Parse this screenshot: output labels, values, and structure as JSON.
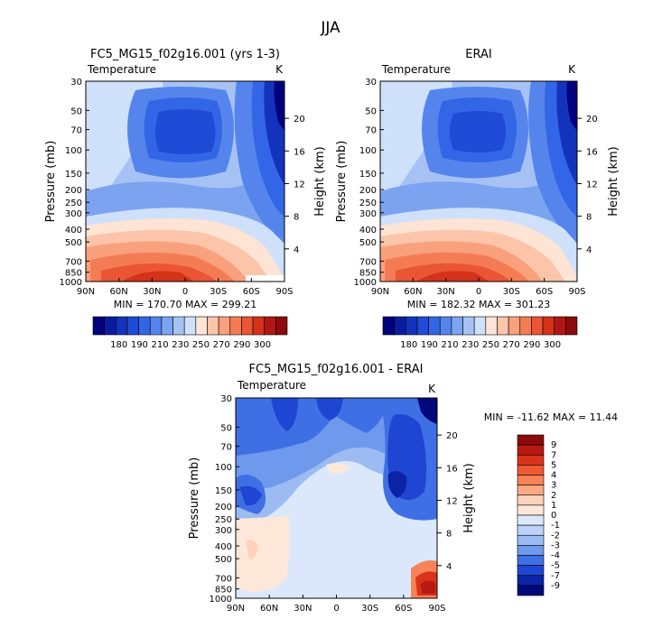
{
  "main_title": "JJA",
  "panels": [
    {
      "id": "model",
      "title": "FC5_MG15_f02g16.001 (yrs 1-3)",
      "left_label": "Temperature",
      "right_label": "K",
      "ylabel": "Pressure (mb)",
      "ylabel2": "Height (km)",
      "minmax": "MIN = 170.70   MAX = 299.21"
    },
    {
      "id": "obs",
      "title": "ERAI",
      "left_label": "Temperature",
      "right_label": "K",
      "ylabel": "Pressure (mb)",
      "ylabel2": "Height (km)",
      "minmax": "MIN = 182.32   MAX = 301.23"
    },
    {
      "id": "diff",
      "title": "FC5_MG15_f02g16.001 - ERAI",
      "left_label": "Temperature",
      "right_label": "K",
      "ylabel": "Pressure (mb)",
      "ylabel2": "Height (km)",
      "minmax": "MIN = -11.62   MAX =  11.44"
    }
  ],
  "axes": {
    "x_ticks": [
      "90N",
      "60N",
      "30N",
      "0",
      "30S",
      "60S",
      "90S"
    ],
    "pressure_ticks": [
      "30",
      "50",
      "70",
      "100",
      "150",
      "200",
      "250",
      "300",
      "400",
      "500",
      "700",
      "850",
      "1000"
    ],
    "height_ticks": [
      "20",
      "16",
      "12",
      "8",
      "4"
    ]
  },
  "colorbars": {
    "temperature": {
      "labels": [
        "180",
        "190",
        "210",
        "230",
        "250",
        "270",
        "290",
        "300"
      ],
      "colors": [
        "#00007f",
        "#0a1c9e",
        "#1433bd",
        "#1f4bd6",
        "#3366e6",
        "#5585ec",
        "#7ba3f0",
        "#a6c2f5",
        "#cfe0fa",
        "#fde4d4",
        "#fcc4a8",
        "#f9a07c",
        "#f47c55",
        "#ea5633",
        "#d4321a",
        "#b01612",
        "#8c0a0a"
      ]
    },
    "difference": {
      "labels": [
        "9",
        "7",
        "5",
        "4",
        "3",
        "2",
        "1",
        "0",
        "-1",
        "-2",
        "-3",
        "-4",
        "-5",
        "-7",
        "-9"
      ],
      "colors": [
        "#8c0a0a",
        "#b81a12",
        "#d9331c",
        "#ef5a34",
        "#f98358",
        "#fba985",
        "#fdd2bc",
        "#fde7d9",
        "#dbe8fb",
        "#bcd2f7",
        "#9bbbf2",
        "#6f99ec",
        "#3f6fe4",
        "#1f46d2",
        "#0c23a8",
        "#00087a"
      ]
    }
  },
  "chart_data": [
    {
      "type": "heatmap",
      "title": "FC5_MG15_f02g16.001 (yrs 1-3)",
      "variable": "Temperature",
      "units": "K",
      "x": [
        "90N",
        "60N",
        "30N",
        "0",
        "30S",
        "60S",
        "90S"
      ],
      "y_pressure_mb": [
        30,
        50,
        70,
        100,
        150,
        200,
        250,
        300,
        400,
        500,
        700,
        850,
        1000
      ],
      "min": 170.7,
      "max": 299.21,
      "levels": [
        180,
        190,
        210,
        230,
        250,
        270,
        290,
        300
      ]
    },
    {
      "type": "heatmap",
      "title": "ERAI",
      "variable": "Temperature",
      "units": "K",
      "x": [
        "90N",
        "60N",
        "30N",
        "0",
        "30S",
        "60S",
        "90S"
      ],
      "y_pressure_mb": [
        30,
        50,
        70,
        100,
        150,
        200,
        250,
        300,
        400,
        500,
        700,
        850,
        1000
      ],
      "min": 182.32,
      "max": 301.23,
      "levels": [
        180,
        190,
        210,
        230,
        250,
        270,
        290,
        300
      ]
    },
    {
      "type": "heatmap",
      "title": "FC5_MG15_f02g16.001 - ERAI",
      "variable": "Temperature",
      "units": "K",
      "x": [
        "90N",
        "60N",
        "30N",
        "0",
        "30S",
        "60S",
        "90S"
      ],
      "y_pressure_mb": [
        30,
        50,
        70,
        100,
        150,
        200,
        250,
        300,
        400,
        500,
        700,
        850,
        1000
      ],
      "min": -11.62,
      "max": 11.44,
      "levels": [
        9,
        7,
        5,
        4,
        3,
        2,
        1,
        0,
        -1,
        -2,
        -3,
        -4,
        -5,
        -7,
        -9
      ]
    }
  ]
}
